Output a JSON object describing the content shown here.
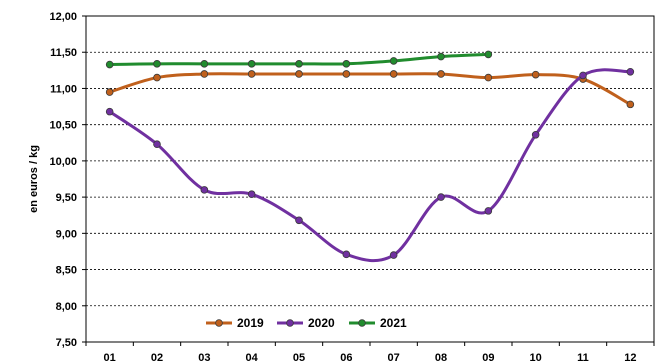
{
  "chart_data": {
    "type": "line",
    "title": "",
    "xlabel": "",
    "ylabel": "en euros / kg",
    "categories": [
      "01",
      "02",
      "03",
      "04",
      "05",
      "06",
      "07",
      "08",
      "09",
      "10",
      "11",
      "12"
    ],
    "ylim": [
      7.5,
      12.0
    ],
    "ytick_step": 0.5,
    "ytick_labels": [
      "7,50",
      "8,00",
      "8,50",
      "9,00",
      "9,50",
      "10,00",
      "10,50",
      "11,00",
      "11,50",
      "12,00"
    ],
    "grid": "horizontal dashed",
    "legend_position": "bottom-left",
    "series": [
      {
        "name": "2019",
        "color": "#C0601C",
        "values": [
          10.95,
          11.15,
          11.2,
          11.2,
          11.2,
          11.2,
          11.2,
          11.2,
          11.15,
          11.19,
          11.13,
          10.78
        ]
      },
      {
        "name": "2020",
        "color": "#7030A0",
        "values": [
          10.68,
          10.23,
          9.6,
          9.54,
          9.18,
          8.71,
          8.7,
          9.5,
          9.31,
          10.36,
          11.18,
          11.23
        ]
      },
      {
        "name": "2021",
        "color": "#218C2E",
        "values": [
          11.33,
          11.34,
          11.34,
          11.34,
          11.34,
          11.34,
          11.38,
          11.44,
          11.47,
          null,
          null,
          null
        ]
      }
    ]
  }
}
